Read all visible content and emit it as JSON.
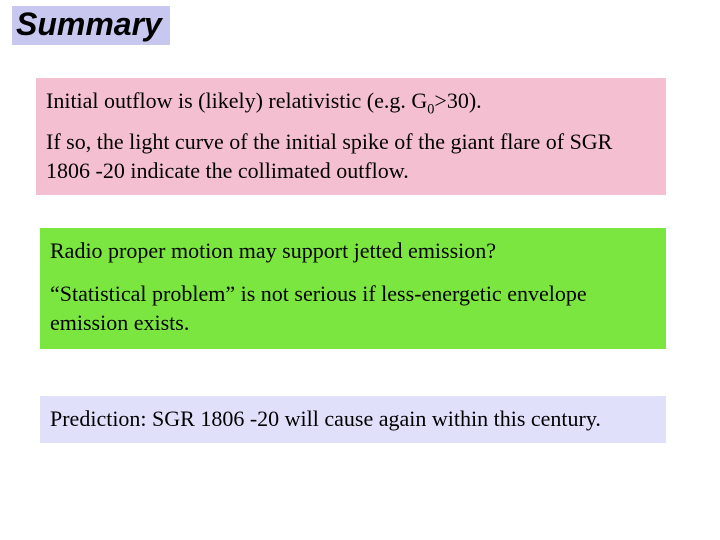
{
  "title": {
    "text": "Summary",
    "bg": "#c7c7f0",
    "fg": "#000000"
  },
  "pink": {
    "bg": "#f3bfd1",
    "p1_a": "Initial outflow is (likely) relativistic (e.g. G",
    "p1_sub": "0",
    "p1_b": ">30).",
    "p2": "If so, the light curve of the initial spike of the giant flare of SGR 1806 -20 indicate the collimated outflow."
  },
  "green": {
    "bg": "#7be63f",
    "p1": "Radio proper motion may support jetted emission?",
    "p2": "“Statistical problem” is not serious if less-energetic envelope emission exists."
  },
  "lavender": {
    "bg": "#e0e0fb",
    "p1": "Prediction: SGR 1806 -20 will cause again within this century."
  }
}
